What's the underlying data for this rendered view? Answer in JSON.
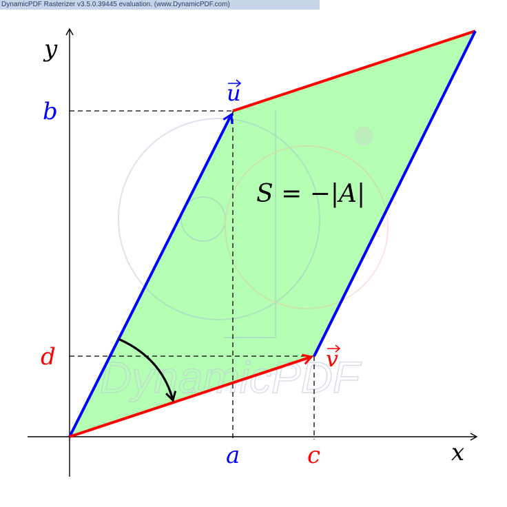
{
  "banner": {
    "text": "DynamicPDF Rasterizer v3.5.0.39445 evaluation. (www.DynamicPDF.com)"
  },
  "axes": {
    "x_label": "x",
    "y_label": "y"
  },
  "vectors": {
    "u": {
      "label": "u",
      "coords": {
        "x": "a",
        "y": "b"
      },
      "color": "#0000ff"
    },
    "v": {
      "label": "v",
      "coords": {
        "x": "c",
        "y": "d"
      },
      "color": "#ff0000"
    }
  },
  "area": {
    "formula": "S = −|A|",
    "fill": "#b4ffb4"
  },
  "watermark": {
    "text": "DynamicPDF"
  }
}
